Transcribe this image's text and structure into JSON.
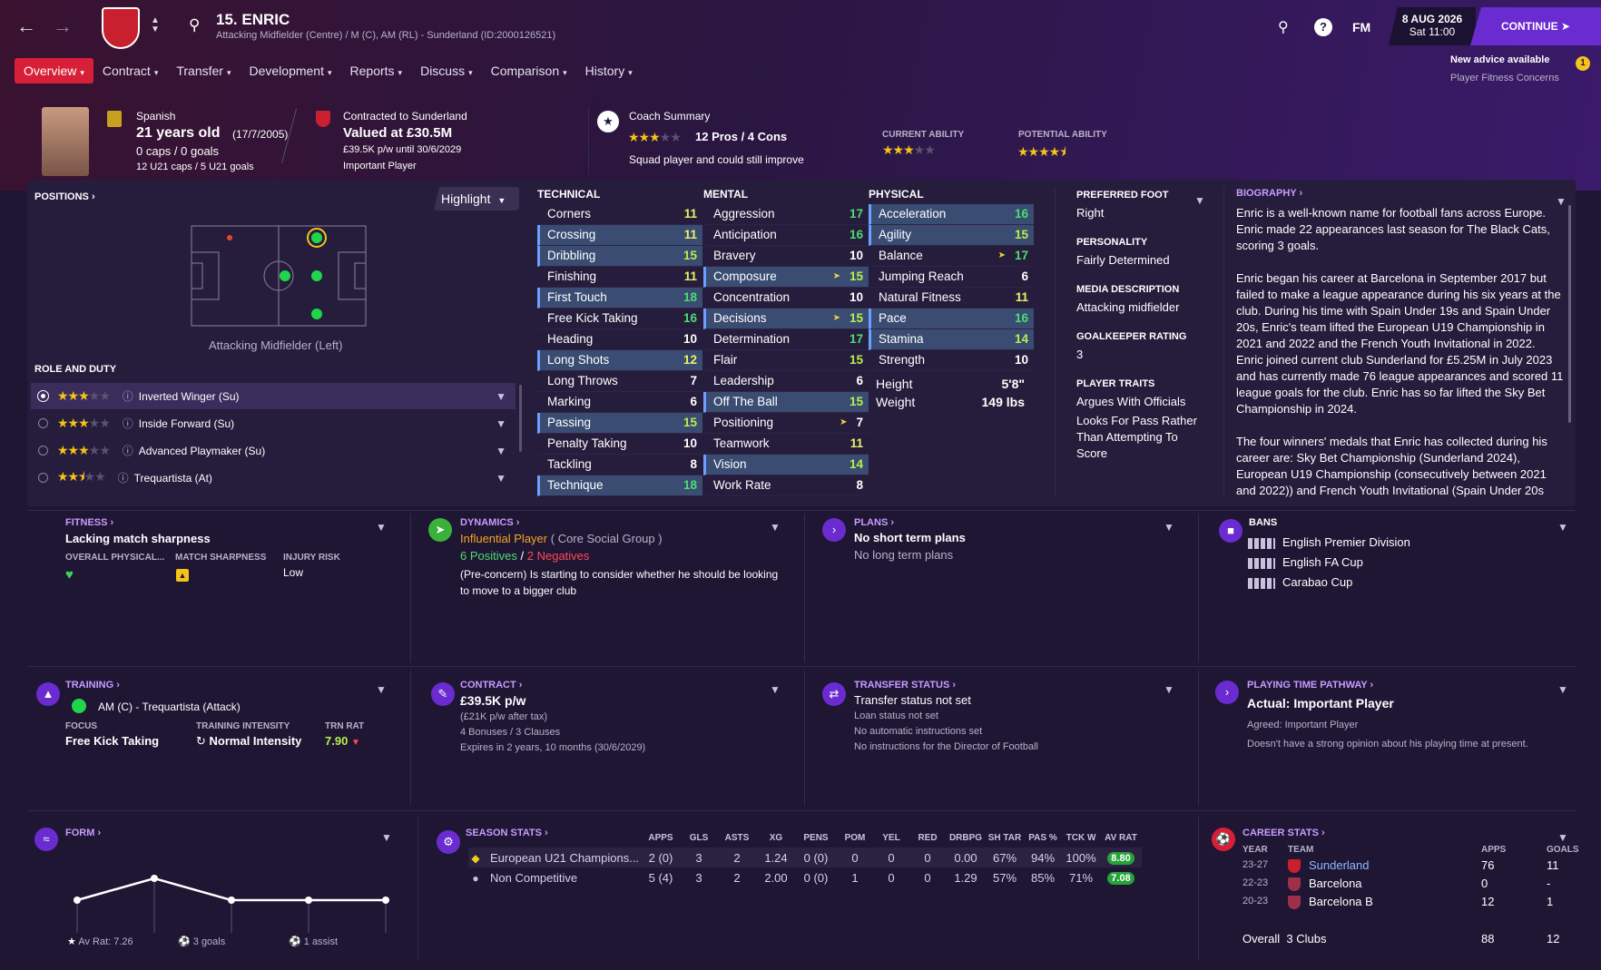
{
  "header": {
    "player_name": "15. ENRIC",
    "player_sub": "Attacking Midfielder (Centre) / M (C), AM (RL) - Sunderland (ID:2000126521)",
    "fm_label": "FM",
    "date": "8 AUG 2026",
    "time": "Sat 11:00",
    "continue": "CONTINUE",
    "advice_title": "New advice available",
    "advice_sub": "Player Fitness Concerns",
    "advice_count": "1"
  },
  "tabs": [
    "Overview",
    "Contract",
    "Transfer",
    "Development",
    "Reports",
    "Discuss",
    "Comparison",
    "History"
  ],
  "summary": {
    "nationality": "Spanish",
    "age": "21 years old",
    "dob": "(17/7/2005)",
    "caps": "0 caps / 0 goals",
    "u21": "12 U21 caps / 5 U21 goals",
    "contracted": "Contracted to Sunderland",
    "value": "Valued at £30.5M",
    "wage": "£39.5K p/w until 30/6/2029",
    "status": "Important Player",
    "coach_title": "Coach Summary",
    "pros_cons": "12 Pros / 4 Cons",
    "coach_line": "Squad player and could still improve",
    "ca_label": "CURRENT ABILITY",
    "pa_label": "POTENTIAL ABILITY",
    "ca_stars": 3,
    "pa_stars": 4.5,
    "coach_stars": 3
  },
  "positions": {
    "title": "POSITIONS",
    "highlight": "Highlight",
    "caption": "Attacking Midfielder (Left)",
    "role_title": "ROLE AND DUTY"
  },
  "roles": [
    {
      "name": "Inverted Winger (Su)",
      "stars": 3
    },
    {
      "name": "Inside Forward (Su)",
      "stars": 3
    },
    {
      "name": "Advanced Playmaker (Su)",
      "stars": 3
    },
    {
      "name": "Trequartista (At)",
      "stars": 2.5
    }
  ],
  "technical_title": "TECHNICAL",
  "mental_title": "MENTAL",
  "physical_title": "PHYSICAL",
  "technical": [
    {
      "n": "Corners",
      "v": "11",
      "hl": false
    },
    {
      "n": "Crossing",
      "v": "11",
      "hl": true
    },
    {
      "n": "Dribbling",
      "v": "15",
      "hl": true
    },
    {
      "n": "Finishing",
      "v": "11",
      "hl": false
    },
    {
      "n": "First Touch",
      "v": "18",
      "hl": true
    },
    {
      "n": "Free Kick Taking",
      "v": "16",
      "hl": false
    },
    {
      "n": "Heading",
      "v": "10",
      "hl": false
    },
    {
      "n": "Long Shots",
      "v": "12",
      "hl": true
    },
    {
      "n": "Long Throws",
      "v": "7",
      "hl": false
    },
    {
      "n": "Marking",
      "v": "6",
      "hl": false
    },
    {
      "n": "Passing",
      "v": "15",
      "hl": true
    },
    {
      "n": "Penalty Taking",
      "v": "10",
      "hl": false
    },
    {
      "n": "Tackling",
      "v": "8",
      "hl": false
    },
    {
      "n": "Technique",
      "v": "18",
      "hl": true
    }
  ],
  "mental": [
    {
      "n": "Aggression",
      "v": "17",
      "hl": false
    },
    {
      "n": "Anticipation",
      "v": "16",
      "hl": false
    },
    {
      "n": "Bravery",
      "v": "10",
      "hl": false
    },
    {
      "n": "Composure",
      "v": "15",
      "hl": true,
      "arrow": true
    },
    {
      "n": "Concentration",
      "v": "10",
      "hl": false
    },
    {
      "n": "Decisions",
      "v": "15",
      "hl": true,
      "arrow": true
    },
    {
      "n": "Determination",
      "v": "17",
      "hl": false
    },
    {
      "n": "Flair",
      "v": "15",
      "hl": false
    },
    {
      "n": "Leadership",
      "v": "6",
      "hl": false
    },
    {
      "n": "Off The Ball",
      "v": "15",
      "hl": true
    },
    {
      "n": "Positioning",
      "v": "7",
      "hl": false,
      "arrow": true
    },
    {
      "n": "Teamwork",
      "v": "11",
      "hl": false
    },
    {
      "n": "Vision",
      "v": "14",
      "hl": true
    },
    {
      "n": "Work Rate",
      "v": "8",
      "hl": false
    }
  ],
  "physical": [
    {
      "n": "Acceleration",
      "v": "16",
      "hl": true
    },
    {
      "n": "Agility",
      "v": "15",
      "hl": true
    },
    {
      "n": "Balance",
      "v": "17",
      "hl": false,
      "arrow": true
    },
    {
      "n": "Jumping Reach",
      "v": "6",
      "hl": false
    },
    {
      "n": "Natural Fitness",
      "v": "11",
      "hl": false
    },
    {
      "n": "Pace",
      "v": "16",
      "hl": true
    },
    {
      "n": "Stamina",
      "v": "14",
      "hl": true
    },
    {
      "n": "Strength",
      "v": "10",
      "hl": false
    }
  ],
  "height_label": "Height",
  "height": "5'8\"",
  "weight_label": "Weight",
  "weight": "149 lbs",
  "info": {
    "foot_label": "PREFERRED FOOT",
    "foot": "Right",
    "personality_label": "PERSONALITY",
    "personality": "Fairly Determined",
    "media_label": "MEDIA DESCRIPTION",
    "media": "Attacking midfielder",
    "gk_label": "GOALKEEPER RATING",
    "gk": "3",
    "traits_label": "PLAYER TRAITS",
    "trait1": "Argues With Officials",
    "trait2a": "Looks For Pass Rather",
    "trait2b": "Than Attempting To",
    "trait2c": "Score"
  },
  "biography": {
    "title": "BIOGRAPHY",
    "lines": [
      "Enric is a well-known name for football fans across Europe.",
      "Enric made 22 appearances last season for The Black Cats,",
      "scoring 3 goals.",
      "",
      "Enric began his career at Barcelona in September 2017 but",
      "failed to make a league appearance during his six years at the",
      "club. During his time with Spain Under 19s and Spain Under",
      "20s, Enric's team lifted the European U19 Championship in",
      "2021 and 2022 and the French Youth Invitational in 2022.",
      "Enric joined current club Sunderland for £5.25M in July 2023",
      "and has currently made 76 league appearances and scored 11",
      "league goals for the club. Enric has so far lifted the Sky Bet",
      "Championship in 2024.",
      "",
      "The four winners' medals that Enric has collected during his",
      "career are: Sky Bet Championship (Sunderland 2024),",
      "European U19 Championship (consecutively between 2021",
      "and 2022)) and French Youth Invitational (Spain Under 20s"
    ]
  },
  "fitness": {
    "title": "FITNESS",
    "status": "Lacking match sharpness",
    "l1": "OVERALL PHYSICAL...",
    "l2": "MATCH SHARPNESS",
    "l3": "INJURY RISK",
    "risk": "Low"
  },
  "dynamics": {
    "title": "DYNAMICS",
    "role": "Influential Player",
    "group": "( Core Social Group )",
    "positives": "6 Positives",
    "slash": "/",
    "negatives": "2 Negatives",
    "concern1": "(Pre-concern) Is starting to consider whether he should be looking",
    "concern2": "to move to a bigger club"
  },
  "plans": {
    "title": "PLANS",
    "short": "No short term plans",
    "long": "No long term plans"
  },
  "bans": {
    "title": "BANS",
    "items": [
      "English Premier Division",
      "English FA Cup",
      "Carabao Cup"
    ]
  },
  "training": {
    "title": "TRAINING",
    "role": "AM (C) - Trequartista (Attack)",
    "focus_label": "FOCUS",
    "focus": "Free Kick Taking",
    "intensity_label": "TRAINING INTENSITY",
    "intensity": "Normal Intensity",
    "rat_label": "TRN RAT",
    "rat": "7.90"
  },
  "contract": {
    "title": "CONTRACT",
    "wage": "£39.5K p/w",
    "after_tax": "(£21K p/w after tax)",
    "bonuses": "4 Bonuses / 3 Clauses",
    "expires": "Expires in 2 years, 10 months  (30/6/2029)"
  },
  "transfer": {
    "title": "TRANSFER STATUS",
    "status": "Transfer status not set",
    "loan": "Loan status not set",
    "auto": "No automatic instructions set",
    "dof": "No instructions for the Director of Football"
  },
  "pathway": {
    "title": "PLAYING TIME PATHWAY",
    "actual": "Actual: Important Player",
    "agreed": "Agreed:  Important Player",
    "opinion": "Doesn't have a strong opinion about his playing time at present."
  },
  "form": {
    "title": "FORM",
    "av_rat": "Av Rat: 7.26",
    "goals": "3 goals",
    "assists": "1 assist"
  },
  "chart_data": {
    "type": "line",
    "x": [
      1,
      2,
      3,
      4,
      5
    ],
    "values": [
      7.0,
      7.6,
      7.0,
      7.0,
      7.0
    ],
    "ylim": [
      6,
      8
    ]
  },
  "season": {
    "title": "SEASON STATS",
    "headers": [
      "APPS",
      "GLS",
      "ASTS",
      "XG",
      "PENS",
      "POM",
      "YEL",
      "RED",
      "DRBPG",
      "SH TAR",
      "PAS %",
      "TCK W",
      "AV RAT"
    ],
    "rows": [
      {
        "comp": "European U21 Champions...",
        "vals": [
          "2 (0)",
          "3",
          "2",
          "1.24",
          "0 (0)",
          "0",
          "0",
          "0",
          "0.00",
          "67%",
          "94%",
          "100%"
        ],
        "rat": "8.80"
      },
      {
        "comp": "Non Competitive",
        "vals": [
          "5 (4)",
          "3",
          "2",
          "2.00",
          "0 (0)",
          "1",
          "0",
          "0",
          "1.29",
          "57%",
          "85%",
          "71%"
        ],
        "rat": "7.08"
      }
    ]
  },
  "career": {
    "title": "CAREER STATS",
    "h_year": "YEAR",
    "h_team": "TEAM",
    "h_apps": "APPS",
    "h_goals": "GOALS",
    "rows": [
      {
        "year": "23-27",
        "team": "Sunderland",
        "apps": "76",
        "goals": "11"
      },
      {
        "year": "22-23",
        "team": "Barcelona",
        "apps": "0",
        "goals": "-"
      },
      {
        "year": "20-23",
        "team": "Barcelona B",
        "apps": "12",
        "goals": "1"
      }
    ],
    "overall_label": "Overall",
    "overall_clubs": "3 Clubs",
    "overall_apps": "88",
    "overall_goals": "12"
  }
}
